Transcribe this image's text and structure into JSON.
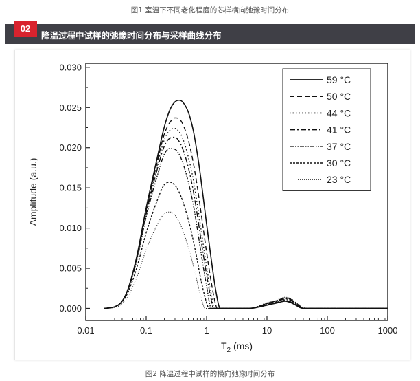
{
  "top_caption": "图1 室温下不同老化程度的芯样横向弛豫时间分布",
  "section": {
    "number": "02",
    "title": "降温过程中试样的弛豫时间分布与采样曲线分布"
  },
  "bottom_caption": "图2 降温过程中试样的横向弛豫时间分布",
  "chart_data": {
    "type": "line",
    "title": "",
    "xlabel": "T",
    "xlabel_sub": "2",
    "xlabel_unit": " (ms)",
    "ylabel": "Amplitude (a.u.)",
    "xscale": "log",
    "xlim": [
      0.01,
      1000
    ],
    "ylim": [
      -0.0015,
      0.0305
    ],
    "x_ticks": [
      0.01,
      0.1,
      1,
      10,
      100,
      1000
    ],
    "x_tick_labels": [
      "0.01",
      "0.1",
      "1",
      "10",
      "100",
      "1000"
    ],
    "y_ticks": [
      0.0,
      0.005,
      0.01,
      0.015,
      0.02,
      0.025,
      0.03
    ],
    "y_tick_labels": [
      "0.000",
      "0.005",
      "0.010",
      "0.015",
      "0.020",
      "0.025",
      "0.030"
    ],
    "legend_position": "top-right",
    "color": "#111111",
    "series": [
      {
        "name": "59 °C",
        "dash": "",
        "width": 1.6,
        "x": [
          0.02,
          0.03,
          0.04,
          0.05,
          0.07,
          0.1,
          0.15,
          0.2,
          0.25,
          0.3,
          0.35,
          0.4,
          0.5,
          0.6,
          0.7,
          0.8,
          1.0,
          1.2,
          1.4,
          1.6,
          1.7,
          5,
          10,
          15,
          20,
          25,
          30,
          35,
          40,
          50,
          1000
        ],
        "y": [
          0.0,
          0.0002,
          0.0009,
          0.0024,
          0.0065,
          0.0125,
          0.0185,
          0.0226,
          0.0248,
          0.0257,
          0.0259,
          0.0257,
          0.0244,
          0.0222,
          0.0193,
          0.0163,
          0.0105,
          0.006,
          0.0025,
          0.0003,
          0.0,
          0.0,
          0.0004,
          0.0007,
          0.0009,
          0.0007,
          0.0004,
          0.0001,
          0.0,
          0.0,
          0.0
        ]
      },
      {
        "name": "50 °C",
        "dash": "7,4",
        "width": 1.4,
        "x": [
          0.02,
          0.03,
          0.04,
          0.05,
          0.07,
          0.1,
          0.15,
          0.2,
          0.25,
          0.3,
          0.35,
          0.4,
          0.5,
          0.6,
          0.7,
          0.8,
          1.0,
          1.2,
          1.4,
          1.5,
          5,
          10,
          15,
          20,
          25,
          30,
          35,
          40,
          50,
          1000
        ],
        "y": [
          0.0,
          0.0002,
          0.0009,
          0.0024,
          0.0064,
          0.0122,
          0.018,
          0.0217,
          0.0232,
          0.0237,
          0.0236,
          0.023,
          0.0209,
          0.0182,
          0.0152,
          0.0122,
          0.007,
          0.0032,
          0.0006,
          0.0,
          0.0,
          0.0004,
          0.0008,
          0.001,
          0.0008,
          0.0005,
          0.0002,
          0.0,
          0.0,
          0.0
        ]
      },
      {
        "name": "44 °C",
        "dash": "1.5,3",
        "width": 1.4,
        "x": [
          0.02,
          0.03,
          0.04,
          0.05,
          0.07,
          0.1,
          0.15,
          0.2,
          0.25,
          0.3,
          0.35,
          0.4,
          0.5,
          0.6,
          0.7,
          0.8,
          1.0,
          1.2,
          1.35,
          5,
          10,
          15,
          20,
          25,
          30,
          35,
          40,
          50,
          1000
        ],
        "y": [
          0.0,
          0.0002,
          0.0009,
          0.0024,
          0.0063,
          0.012,
          0.0176,
          0.021,
          0.0222,
          0.0224,
          0.022,
          0.0212,
          0.0188,
          0.0161,
          0.013,
          0.0101,
          0.0052,
          0.0017,
          0.0,
          0.0,
          0.0005,
          0.0008,
          0.0011,
          0.0009,
          0.0006,
          0.0002,
          0.0,
          0.0,
          0.0
        ]
      },
      {
        "name": "41 °C",
        "dash": "8,3,2,3",
        "width": 1.4,
        "x": [
          0.02,
          0.03,
          0.04,
          0.05,
          0.07,
          0.1,
          0.15,
          0.2,
          0.25,
          0.3,
          0.35,
          0.4,
          0.5,
          0.6,
          0.7,
          0.8,
          1.0,
          1.2,
          1.3,
          5,
          10,
          15,
          20,
          25,
          30,
          35,
          40,
          50,
          1000
        ],
        "y": [
          0.0,
          0.0002,
          0.0009,
          0.0024,
          0.0062,
          0.0118,
          0.0171,
          0.0202,
          0.0212,
          0.0213,
          0.0208,
          0.0199,
          0.0175,
          0.0147,
          0.0117,
          0.0088,
          0.0042,
          0.001,
          0.0,
          0.0,
          0.0005,
          0.0009,
          0.0012,
          0.001,
          0.0006,
          0.0002,
          0.0,
          0.0,
          0.0
        ]
      },
      {
        "name": "37 °C",
        "dash": "6,2,1.5,2,1.5,2",
        "width": 1.4,
        "x": [
          0.02,
          0.03,
          0.04,
          0.05,
          0.07,
          0.1,
          0.15,
          0.2,
          0.25,
          0.3,
          0.35,
          0.4,
          0.5,
          0.6,
          0.7,
          0.8,
          1.0,
          1.2,
          5,
          10,
          15,
          20,
          25,
          30,
          35,
          40,
          50,
          1000
        ],
        "y": [
          0.0,
          0.0002,
          0.0009,
          0.0023,
          0.006,
          0.0114,
          0.0163,
          0.0192,
          0.0199,
          0.0198,
          0.0192,
          0.0182,
          0.0157,
          0.013,
          0.01,
          0.0072,
          0.0028,
          0.0,
          0.0,
          0.0006,
          0.001,
          0.0013,
          0.0011,
          0.0007,
          0.0003,
          0.0,
          0.0,
          0.0
        ]
      },
      {
        "name": "30 °C",
        "dash": "3,2",
        "width": 1.4,
        "x": [
          0.02,
          0.03,
          0.04,
          0.05,
          0.07,
          0.1,
          0.15,
          0.2,
          0.25,
          0.3,
          0.35,
          0.4,
          0.5,
          0.6,
          0.7,
          0.8,
          1.0,
          1.1,
          5,
          10,
          15,
          20,
          25,
          30,
          35,
          40,
          50,
          1000
        ],
        "y": [
          0.0,
          0.0002,
          0.0008,
          0.002,
          0.0051,
          0.0094,
          0.0133,
          0.0154,
          0.0157,
          0.0153,
          0.0145,
          0.0134,
          0.011,
          0.0085,
          0.006,
          0.0037,
          0.0007,
          0.0,
          0.0,
          0.0006,
          0.001,
          0.0013,
          0.0011,
          0.0007,
          0.0003,
          0.0,
          0.0,
          0.0
        ]
      },
      {
        "name": "23 °C",
        "dash": "1,2",
        "width": 1.0,
        "x": [
          0.02,
          0.03,
          0.04,
          0.05,
          0.07,
          0.1,
          0.15,
          0.2,
          0.25,
          0.3,
          0.35,
          0.4,
          0.5,
          0.6,
          0.7,
          0.8,
          0.95,
          5,
          10,
          15,
          20,
          25,
          30,
          35,
          40,
          50,
          1000
        ],
        "y": [
          0.0,
          0.0001,
          0.0006,
          0.0015,
          0.0039,
          0.0073,
          0.0103,
          0.0118,
          0.012,
          0.0116,
          0.0108,
          0.0098,
          0.0076,
          0.0054,
          0.0033,
          0.0015,
          0.0,
          0.0,
          0.0007,
          0.0011,
          0.0014,
          0.0012,
          0.0008,
          0.0004,
          0.0001,
          0.0,
          0.0
        ]
      }
    ]
  }
}
